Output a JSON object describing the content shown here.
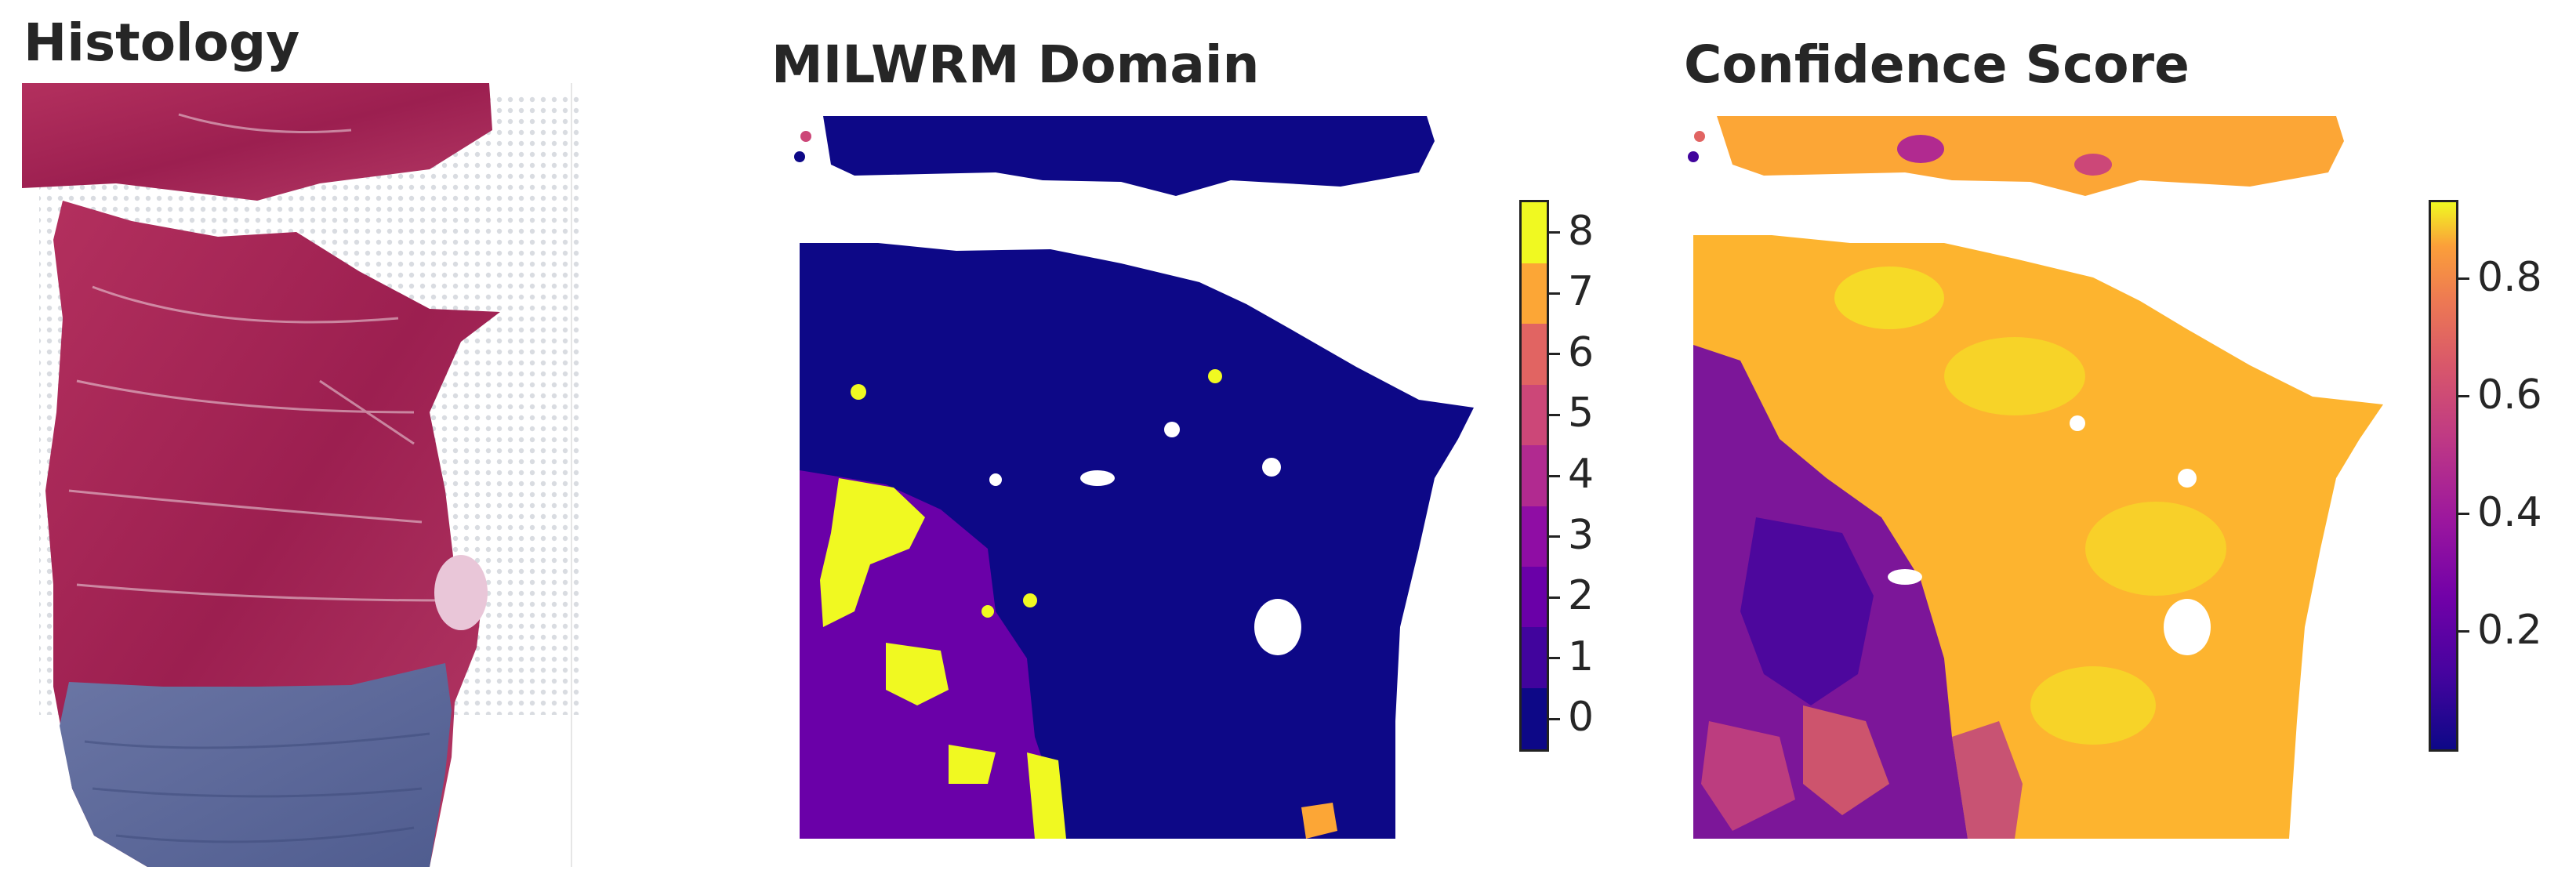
{
  "panels": {
    "histology": {
      "title": "Histology"
    },
    "domain": {
      "title": "MILWRM Domain"
    },
    "confidence": {
      "title": "Confidence Score"
    }
  },
  "domain_colorbar": {
    "ticks": [
      "0",
      "1",
      "2",
      "3",
      "4",
      "5",
      "6",
      "7",
      "8"
    ],
    "colors": [
      "#0d0887",
      "#41049d",
      "#6a00a8",
      "#8f0da4",
      "#b12a90",
      "#cc4778",
      "#e16462",
      "#f2844b",
      "#fca636",
      "#fcce25",
      "#f0f921"
    ]
  },
  "confidence_colorbar": {
    "ticks": [
      "0.2",
      "0.4",
      "0.6",
      "0.8"
    ],
    "tick_values": [
      0.2,
      0.4,
      0.6,
      0.8
    ],
    "range": [
      0.0,
      0.93
    ],
    "colormap": "plasma"
  },
  "colors": {
    "background_domain": "#0d0887",
    "tissue_pink": "#a8295a",
    "tissue_blue": "#5c6a9a",
    "text": "#262626"
  }
}
